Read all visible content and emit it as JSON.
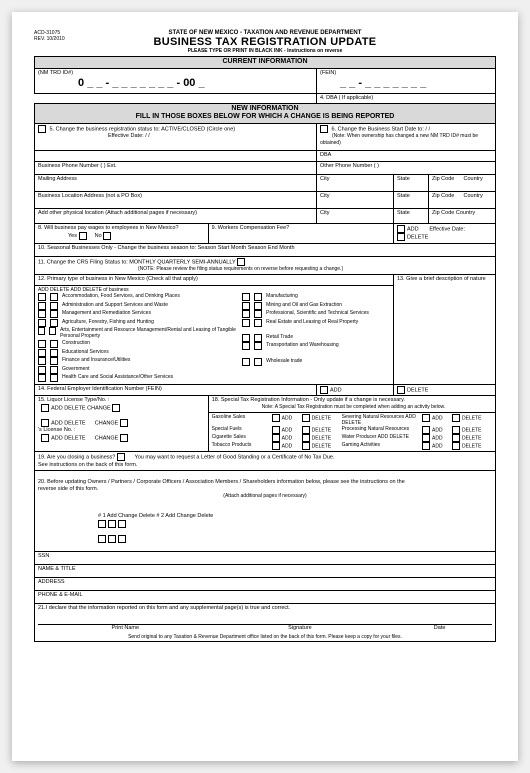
{
  "meta": {
    "form_code": "ACD-31075",
    "rev": "REV. 10/2010"
  },
  "header": {
    "agency": "STATE OF NEW MEXICO - TAXATION AND REVENUE DEPARTMENT",
    "title": "BUSINESS TAX REGISTRATION UPDATE",
    "sub": "PLEASE TYPE OR PRINT IN BLACK INK - Instructions on reverse"
  },
  "sections": {
    "current_info": "CURRENT INFORMATION",
    "new_info_line1": "NEW INFORMATION",
    "new_info_line2": "FILL IN THOSE BOXES BELOW FOR WHICH A CHANGE IS BEING REPORTED"
  },
  "fields": {
    "nm_trd_label": "(NM TRD ID#)",
    "fein_label": "(FEIN)",
    "id_zero": "0",
    "id_dash": "_ _  -  _ _ _ _ _ _ _  -  00",
    "id_suffix": "_",
    "fein_dash": "_ _  -  _ _ _ _ _ _ _",
    "dba_label": "4. DBA ( If applicable)",
    "q5": "5.      Change the business registration status to: ACTIVE/CLOSED (Circle one)",
    "effective_date": "Effective Date:          /          /",
    "q6": "6.      Change the Business Start Date to:          /          /",
    "q6_note": "(Note: When ownership has changed a new NM TRD ID# must be obtained)",
    "dba2": "DBA",
    "biz_phone": "Business Phone Number    (        )                                       Ext.",
    "other_phone": "Other Phone Number    (        )",
    "mailing": "Mailing Address",
    "city": "City",
    "state": "State",
    "zip": "Zip Code",
    "country": "Country",
    "biz_loc": "Business Location Address (not a PO Box)",
    "add_loc": "Add other physical location (Attach additional pages if necessary)",
    "statezip": "State",
    "zipcode2": "Zip Code",
    "country2": "Country",
    "q8": "8. Will business pay wages to employees in New Mexico?",
    "yes": "Yes",
    "no": "No",
    "q9": "9. Workers Compensation Fee?",
    "add": "ADD",
    "delete": "DELETE",
    "effective2": "Effective Date:",
    "q10": "10. Seasonal  Businesses Only -  Change the business season to:       Season Start Month                                         Season End Month",
    "q11": "11.  Change the CRS Filing Status to: MONTHLY     QUARTERLY                                                                    SEMI-ANNUALLY",
    "q11_note": "(NOTE: Please review the filing status requirements on reverse before requesting a change.)",
    "q12": "12. Primary type of business in New Mexico (Check all that apply)",
    "q12_sub": "ADD  DELETE ADD  DELETE of business",
    "q13": "13. Give a brief description of nature",
    "biz_types_col1": [
      "Accommodation, Food Services, and Drinking Places",
      "Administration and Support Services and Waste",
      "    Management and Remediation Services",
      "Agriculture, Forestry, Fishing  and Hunting",
      "Arts, Entertainment and Resource Management/Rental and Leasing of Tangible Personal Property",
      "Construction",
      "Educational Services",
      "Finance and Insurance/Utilities",
      "Government",
      "Health Care and Social Assistance/Other Services"
    ],
    "biz_types_col2": [
      "Manufacturing",
      "Mining and Oil and Gas Extraction",
      "Professional, Scientific and Technical Services",
      "Real Estate and Leasing of Real Property",
      "",
      "Retail Trade",
      "Transportation and Warehousing",
      "",
      "Wholesale trade"
    ],
    "q14": "14. Federal Employer Identification Number (FEIN)",
    "q14_add": "ADD",
    "q14_del": "DELETE",
    "q15": "15. Liquor License Type/No. :",
    "q15_row": "ADD   DELETE           CHANGE",
    "lic_no": "'s License No. :",
    "q18": "18. Special Tax Registration Information - Only update if a change is necessary.",
    "q18_note": "Note: A Special Tax Registration must be completed when adding an activity below.",
    "fuel_rows": [
      "Gasoline Sales",
      "Special Fuels",
      "Cigarette Sales",
      "Tobacco Products"
    ],
    "fuel_cols": [
      "ADD",
      "DELETE"
    ],
    "fuel_side": [
      "Severing Natural Resources  ADD   DELETE",
      "Processing Natural Resources",
      "Water Producer  ADD   DELETE",
      "Gaming Activities"
    ],
    "q19": "19.           Are you closing a business?",
    "q19_note": "You may want to request a Letter of Good Standing or a Certificate of No Tax Due.\nSee instructions on the back of this form.",
    "q20": "20.  Before updating Owners / Partners / Corporate Officers / Association Members / Shareholders information below, please see the instructions on the\n       reverse side of this form.",
    "q20_attach": "(Attach additional pages if necessary)",
    "q20_row": "# 1           Add Change Delete   # 2           Add   Change   Delete",
    "rows20": [
      "SSN",
      "NAME & TITLE",
      "ADDRESS",
      "PHONE & E-MAIL"
    ],
    "q21": "21.I declare that the information reported on this form and any supplemental page(s) is true and correct.",
    "sig": [
      "Print Name",
      "Signature",
      "Date"
    ],
    "foot": "Send original to any Taxation & Revenue Department office listed on the back of this form.  Please keep a copy for your files."
  },
  "colors": {
    "header_bg": "#d9d9d9"
  }
}
